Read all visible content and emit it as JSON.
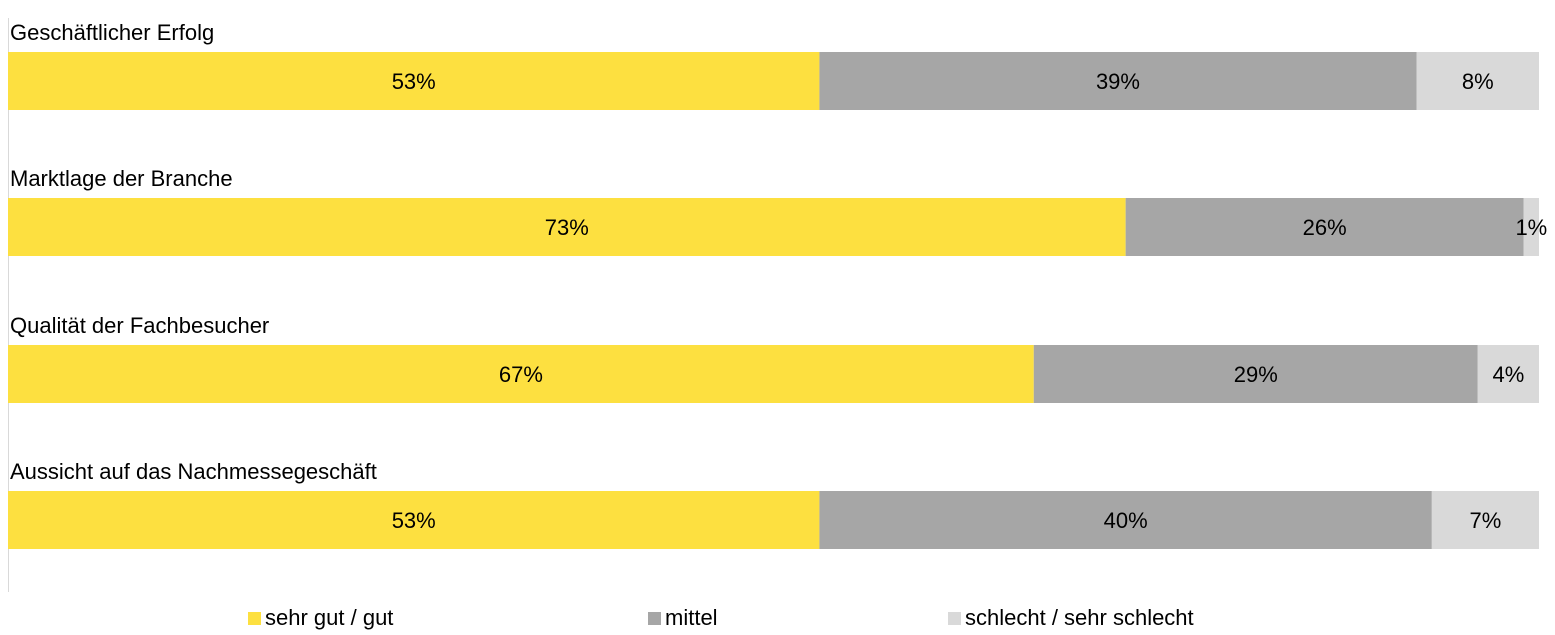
{
  "chart_data": {
    "type": "bar",
    "orientation": "horizontal",
    "stacked": true,
    "normalized_100": true,
    "title": "",
    "xlabel": "",
    "ylabel": "",
    "xlim": [
      0,
      100
    ],
    "grid": false,
    "legend_position": "bottom",
    "categories": [
      "Geschäftlicher Erfolg",
      "Marktlage der Branche",
      "Qualität der Fachbesucher",
      "Aussicht auf das Nachmessegeschäft"
    ],
    "series": [
      {
        "name": "sehr gut / gut",
        "color": "#FDE040",
        "values": [
          53,
          73,
          67,
          53
        ]
      },
      {
        "name": "mittel",
        "color": "#A6A6A6",
        "values": [
          39,
          26,
          29,
          40
        ]
      },
      {
        "name": "schlecht / sehr schlecht",
        "color": "#D9D9D9",
        "values": [
          8,
          1,
          4,
          7
        ]
      }
    ],
    "value_label_suffix": "%"
  }
}
